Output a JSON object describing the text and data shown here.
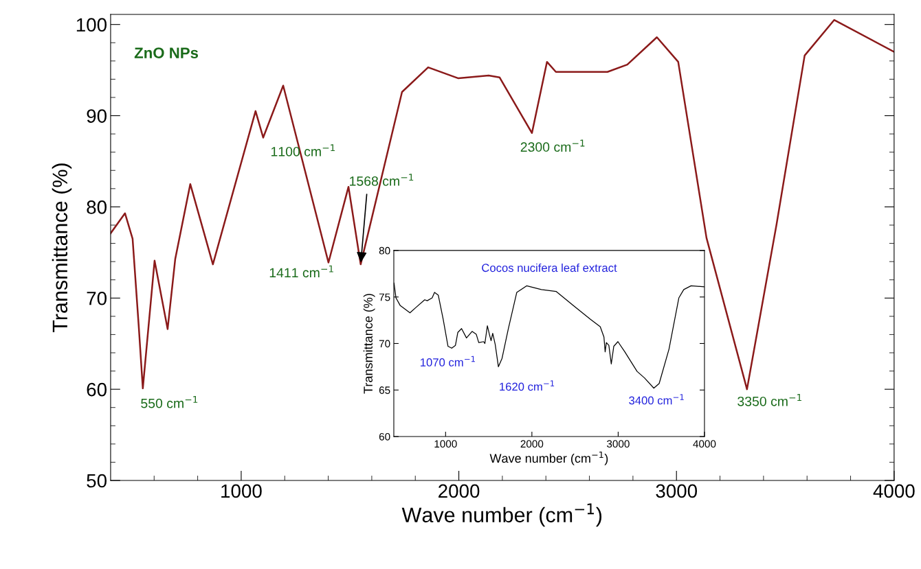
{
  "chart_data": [
    {
      "type": "line",
      "xlabel": "Wave number (cm$^{−1}$)",
      "ylabel": "Transmittance (%)",
      "xlim": [
        400,
        4000
      ],
      "ylim": [
        50,
        101.1
      ],
      "xticks": [
        {
          "value": 600,
          "label": null
        },
        {
          "value": 800,
          "label": null
        },
        1000,
        {
          "value": 1200,
          "label": null
        },
        {
          "value": 1400,
          "label": null
        },
        {
          "value": 1600,
          "label": null
        },
        {
          "value": 1800,
          "label": null
        },
        2000,
        {
          "value": 2200,
          "label": null
        },
        {
          "value": 2400,
          "label": null
        },
        {
          "value": 2600,
          "label": null
        },
        {
          "value": 2800,
          "label": null
        },
        3000,
        {
          "value": 3200,
          "label": null
        },
        {
          "value": 3400,
          "label": null
        },
        {
          "value": 3600,
          "label": null
        },
        {
          "value": 3800,
          "label": null
        },
        4000
      ],
      "yticks": [
        50,
        {
          "value": 52,
          "label": null
        },
        {
          "value": 54,
          "label": null
        },
        {
          "value": 56,
          "label": null
        },
        {
          "value": 58,
          "label": null
        },
        60,
        {
          "value": 62,
          "label": null
        },
        {
          "value": 64,
          "label": null
        },
        {
          "value": 66,
          "label": null
        },
        {
          "value": 68,
          "label": null
        },
        70,
        {
          "value": 72,
          "label": null
        },
        {
          "value": 74,
          "label": null
        },
        {
          "value": 76,
          "label": null
        },
        {
          "value": 78,
          "label": null
        },
        80,
        {
          "value": 82,
          "label": null
        },
        {
          "value": 84,
          "label": null
        },
        {
          "value": 86,
          "label": null
        },
        {
          "value": 88,
          "label": null
        },
        90,
        {
          "value": 92,
          "label": null
        },
        {
          "value": 94,
          "label": null
        },
        {
          "value": 96,
          "label": null
        },
        {
          "value": 98,
          "label": null
        },
        100
      ],
      "series": [
        {
          "color": "#8b1a1a",
          "x": [
            400,
            466,
            501,
            529,
            548,
            602,
            662,
            697,
            766,
            870,
            1066,
            1101,
            1193,
            1401,
            1493,
            1549,
            1739,
            1859,
            1998,
            2137,
            2187,
            2336,
            2405,
            2446,
            2683,
            2774,
            2910,
            3008,
            3138,
            3324,
            3460,
            3589,
            3725,
            4000
          ],
          "values": [
            77.1,
            79.3,
            76.5,
            67.0,
            60.1,
            74.1,
            66.6,
            74.3,
            82.5,
            73.7,
            90.5,
            87.6,
            93.3,
            73.9,
            82.2,
            73.7,
            92.6,
            95.3,
            94.1,
            94.4,
            94.2,
            88.1,
            95.9,
            94.8,
            94.8,
            95.6,
            98.6,
            95.9,
            76.6,
            60.0,
            78.1,
            96.6,
            100.5,
            97.0
          ]
        }
      ],
      "annotations": [
        "ZnO NPs",
        {
          "text": "550 cm$^{−1}$",
          "x": 548,
          "y": 60.1
        },
        {
          "text": "1100 cm$^{−1}$",
          "x": 1101,
          "y": 87.6
        },
        {
          "text": "1411 cm$^{−1}$",
          "x": 1401,
          "y": 73.9
        },
        {
          "text": "1568 cm$^{−1}$",
          "x": 1549,
          "y": 73.7
        },
        {
          "text": "2300 cm$^{−1}$",
          "x": 2336,
          "y": 88.1
        },
        {
          "text": "3350 cm$^{−1}$",
          "x": 3324,
          "y": 60.0
        }
      ]
    },
    {
      "type": "line",
      "title": "Cocos nucifera leaf extract",
      "xlabel": "Wave number (cm$^{−1}$)",
      "ylabel": "Transmittance (%)",
      "xlim": [
        400,
        4000
      ],
      "ylim": [
        60,
        80
      ],
      "xticks": [
        1000,
        2000,
        3000,
        4000
      ],
      "yticks": [
        60,
        65,
        70,
        75,
        80
      ],
      "series": [
        {
          "color": "#000000",
          "x": [
            402,
            425,
            473,
            587,
            659,
            758,
            787,
            844,
            872,
            915,
            972,
            1028,
            1071,
            1114,
            1142,
            1185,
            1242,
            1307,
            1355,
            1384,
            1441,
            1455,
            1484,
            1507,
            1527,
            1546,
            1575,
            1612,
            1654,
            1725,
            1825,
            1939,
            2110,
            2280,
            2479,
            2679,
            2792,
            2835,
            2849,
            2863,
            2892,
            2920,
            2949,
            2997,
            3077,
            3219,
            3305,
            3413,
            3475,
            3589,
            3703,
            3760,
            3845,
            4000
          ],
          "values": [
            76.5,
            74.9,
            74.1,
            73.3,
            73.9,
            74.7,
            74.6,
            74.9,
            75.5,
            75.2,
            72.6,
            69.7,
            69.5,
            69.8,
            71.2,
            71.6,
            70.6,
            71.3,
            71.0,
            70.1,
            70.2,
            70.0,
            71.9,
            71.0,
            70.3,
            71.1,
            69.9,
            67.5,
            68.4,
            71.5,
            75.5,
            76.2,
            75.8,
            75.6,
            74.1,
            72.6,
            71.8,
            70.7,
            69.1,
            70.1,
            69.8,
            67.8,
            69.7,
            70.2,
            69.1,
            67.0,
            66.3,
            65.2,
            65.7,
            69.4,
            74.9,
            75.8,
            76.2,
            76.1
          ]
        }
      ],
      "annotations": [
        {
          "text": "1070 cm$^{−1}$",
          "x": 1071,
          "y": 69.5
        },
        {
          "text": "1620 cm$^{−1}$",
          "x": 1612,
          "y": 67.5
        },
        {
          "text": "3400 cm$^{−1}$",
          "x": 3413,
          "y": 65.2
        }
      ]
    }
  ]
}
